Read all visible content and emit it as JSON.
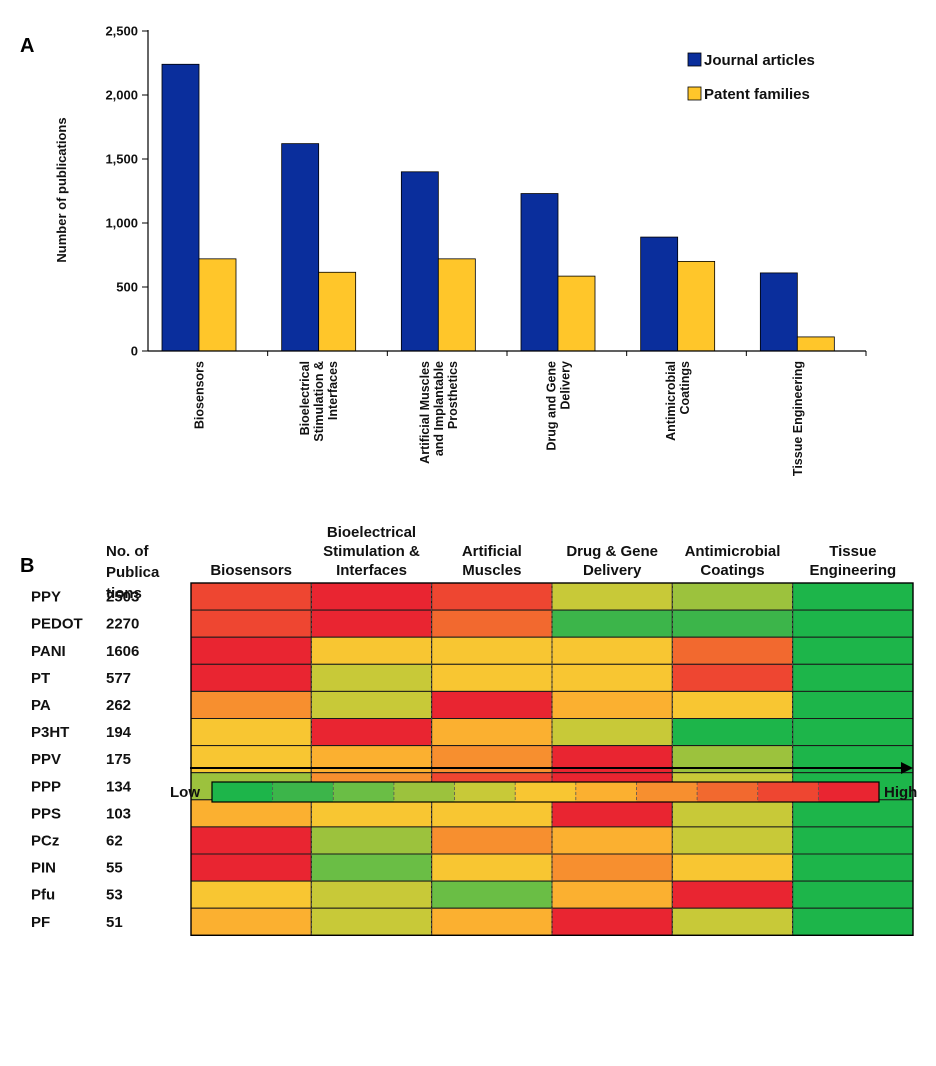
{
  "chart_data": [
    {
      "panel": "A",
      "type": "bar",
      "ylabel": "Number of publications",
      "ylim": [
        0,
        2500
      ],
      "yticks": [
        "0",
        "500",
        "1,000",
        "1,500",
        "2,000",
        "2,500"
      ],
      "categories": [
        [
          "Biosensors"
        ],
        [
          "Bioelectrical",
          "Stimulation &",
          "Interfaces"
        ],
        [
          "Artificial Muscles",
          "and Implantable",
          "Prosthetics"
        ],
        [
          "Drug and Gene",
          "Delivery"
        ],
        [
          "Antimicrobial",
          "Coatings"
        ],
        [
          "Tissue Engineering"
        ]
      ],
      "series": [
        {
          "name": "Journal articles",
          "color": "#0A2E9C",
          "values": [
            2240,
            1620,
            1400,
            1230,
            890,
            610
          ]
        },
        {
          "name": "Patent families",
          "color": "#FFC62A",
          "values": [
            720,
            615,
            720,
            585,
            700,
            110
          ]
        }
      ],
      "legend_position": "top-right"
    },
    {
      "panel": "B",
      "type": "heatmap",
      "pub_header": [
        "No. of",
        "Publica",
        "tions"
      ],
      "columns": [
        [
          "Biosensors"
        ],
        [
          "Bioelectrical",
          "Stimulation &",
          "Interfaces"
        ],
        [
          "Artificial",
          "Muscles"
        ],
        [
          "Drug & Gene",
          "Delivery"
        ],
        [
          "Antimicrobial",
          "Coatings"
        ],
        [
          "Tissue",
          "Engineering"
        ]
      ],
      "rows": [
        {
          "name": "PPY",
          "pubs": "2503",
          "levels": [
            9,
            10,
            9,
            4,
            3,
            0
          ]
        },
        {
          "name": "PEDOT",
          "pubs": "2270",
          "levels": [
            9,
            10,
            8,
            1,
            1,
            0
          ]
        },
        {
          "name": "PANI",
          "pubs": "1606",
          "levels": [
            10,
            5,
            5,
            5,
            8,
            0
          ]
        },
        {
          "name": "PT",
          "pubs": "577",
          "levels": [
            10,
            4,
            5,
            5,
            9,
            0
          ]
        },
        {
          "name": "PA",
          "pubs": "262",
          "levels": [
            7,
            4,
            10,
            6,
            5,
            0
          ]
        },
        {
          "name": "P3HT",
          "pubs": "194",
          "levels": [
            5,
            10,
            6,
            4,
            0,
            0
          ]
        },
        {
          "name": "PPV",
          "pubs": "175",
          "levels": [
            5,
            6,
            7,
            10,
            3,
            0
          ]
        },
        {
          "name": "PPP",
          "pubs": "134",
          "levels": [
            3,
            7,
            9,
            10,
            4,
            0
          ]
        },
        {
          "name": "PPS",
          "pubs": "103",
          "levels": [
            6,
            5,
            5,
            10,
            4,
            0
          ]
        },
        {
          "name": "PCz",
          "pubs": "62",
          "levels": [
            10,
            3,
            7,
            6,
            4,
            0
          ]
        },
        {
          "name": "PIN",
          "pubs": "55",
          "levels": [
            10,
            2,
            5,
            7,
            5,
            0
          ]
        },
        {
          "name": "Pfu",
          "pubs": "53",
          "levels": [
            5,
            4,
            2,
            6,
            10,
            0
          ]
        },
        {
          "name": "PF",
          "pubs": "51",
          "levels": [
            6,
            4,
            6,
            10,
            4,
            0
          ]
        }
      ],
      "scale_colors": [
        "#1DB54A",
        "#3CB54A",
        "#6ABE45",
        "#9CC23D",
        "#C8C938",
        "#F8C632",
        "#FBB030",
        "#F78F2F",
        "#F2692F",
        "#EE4631",
        "#E92531"
      ],
      "scale_low_label": "Low",
      "scale_high_label": "High"
    }
  ]
}
